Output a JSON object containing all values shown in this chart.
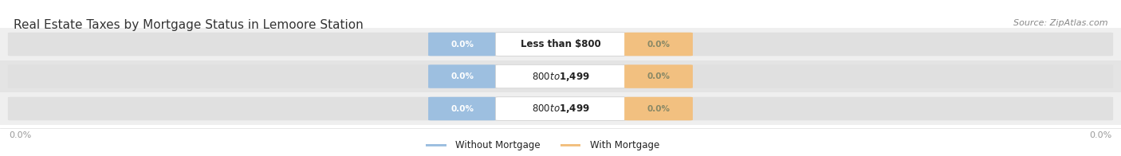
{
  "title": "Real Estate Taxes by Mortgage Status in Lemoore Station",
  "source": "Source: ZipAtlas.com",
  "categories": [
    "Less than $800",
    "$800 to $1,499",
    "$800 to $1,499"
  ],
  "without_mortgage_values": [
    "0.0%",
    "0.0%",
    "0.0%"
  ],
  "with_mortgage_values": [
    "0.0%",
    "0.0%",
    "0.0%"
  ],
  "without_mortgage_color": "#9dbfe0",
  "with_mortgage_color": "#f2c080",
  "row_bg_colors": [
    "#efefef",
    "#e4e4e4",
    "#efefef"
  ],
  "bar_bg_color": "#e0e0e0",
  "label_color": "#222222",
  "title_color": "#333333",
  "source_color": "#888888",
  "axis_label_color": "#999999",
  "axis_label_left": "0.0%",
  "axis_label_right": "0.0%",
  "legend_without": "Without Mortgage",
  "legend_with": "With Mortgage",
  "figsize": [
    14.06,
    1.96
  ],
  "dpi": 100,
  "title_fontsize": 11,
  "source_fontsize": 8,
  "category_fontsize": 8.5,
  "value_fontsize": 7.5,
  "axis_fontsize": 8,
  "legend_fontsize": 8.5
}
